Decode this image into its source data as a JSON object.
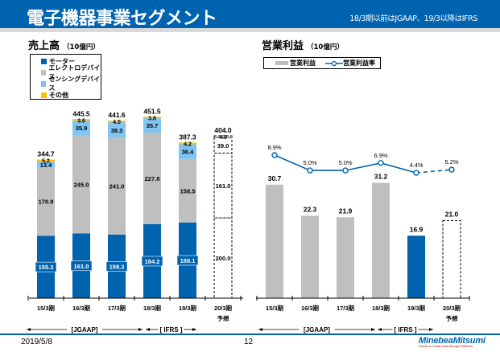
{
  "header": {
    "title": "電子機器事業セグメント",
    "note": "18/3期以前はJGAAP、19/3以降はIFRS"
  },
  "left": {
    "title": "売上高",
    "unit": "（10億円）",
    "legend": [
      {
        "label": "モーター",
        "color": "#0063b0"
      },
      {
        "label": "エレクトロデバイス",
        "color": "#bfbfbf"
      },
      {
        "label": "センシングデバイス",
        "color": "#7fc4f4"
      },
      {
        "label": "その他",
        "color": "#ffc000"
      }
    ]
  },
  "right": {
    "title": "営業利益",
    "unit": "（10億円）",
    "legend": [
      {
        "label": "営業利益",
        "color": "#bfbfbf"
      },
      {
        "label": "営業利益率",
        "color": "#0063b0"
      }
    ]
  },
  "periods": [
    "15/3期",
    "16/3期",
    "17/3期",
    "18/3期",
    "19/3期",
    "20/3期"
  ],
  "forecast_label": "予想",
  "accounting": {
    "jgaap": "[JGAAP]",
    "ifrs": "[ IFRS ]"
  },
  "chart_data": [
    {
      "type": "bar",
      "stacked": true,
      "title": "売上高（10億円）",
      "categories": [
        "15/3期",
        "16/3期",
        "17/3期",
        "18/3期",
        "19/3期",
        "20/3期 予想"
      ],
      "series": [
        {
          "name": "モーター",
          "color": "#0063b0",
          "values": [
            155.3,
            161.0,
            158.3,
            184.2,
            188.1,
            200.0
          ]
        },
        {
          "name": "エレクトロデバイス",
          "color": "#bfbfbf",
          "values": [
            170.9,
            245.0,
            241.0,
            227.8,
            158.5,
            161.0
          ]
        },
        {
          "name": "センシングデバイス",
          "color": "#7fc4f4",
          "values": [
            13.4,
            35.9,
            38.3,
            35.7,
            36.4,
            39.0
          ]
        },
        {
          "name": "その他",
          "color": "#ffc000",
          "values": [
            5.2,
            3.6,
            4.0,
            3.8,
            4.2,
            4.0
          ]
        }
      ],
      "totals": [
        344.7,
        445.5,
        441.6,
        451.5,
        387.3,
        404.0
      ],
      "forecast_index": 5,
      "ylim": [
        0,
        460
      ],
      "legend_position": "top-left"
    },
    {
      "type": "bar",
      "title": "営業利益（10億円）",
      "categories": [
        "15/3期",
        "16/3期",
        "17/3期",
        "18/3期",
        "19/3期",
        "20/3期 予想"
      ],
      "series": [
        {
          "name": "営業利益",
          "values": [
            30.7,
            22.3,
            21.9,
            31.2,
            16.9,
            21.0
          ]
        },
        {
          "name": "営業利益率",
          "type": "line",
          "unit": "%",
          "values": [
            8.9,
            5.0,
            5.0,
            6.9,
            4.4,
            5.2
          ],
          "labels": [
            "8.9%",
            "5.0%",
            "5.0%",
            "6.9%",
            "4.4%",
            "5.2%"
          ]
        }
      ],
      "bar_colors": [
        "#bfbfbf",
        "#bfbfbf",
        "#bfbfbf",
        "#bfbfbf",
        "#0063b0",
        "none"
      ],
      "forecast_index": 5,
      "ylim": [
        0,
        32
      ],
      "legend_position": "top-left"
    }
  ],
  "footer": {
    "date": "2019/5/8",
    "page": "12",
    "logo": "MinebeaMitsumi",
    "tagline": "Passion to Create Value through Difference"
  }
}
